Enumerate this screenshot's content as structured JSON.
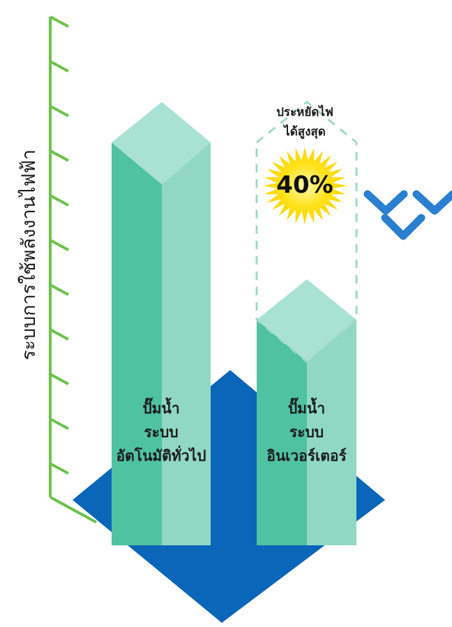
{
  "chart_data": {
    "type": "bar",
    "ylabel": "ระบบการใช้พลังงานไฟฟ้า",
    "categories": [
      [
        "ปั๊มน้ำ",
        "ระบบ",
        "อัตโนมัติทั่วไป"
      ],
      [
        "ปั๊มน้ำ",
        "ระบบ",
        "อินเวอร์เตอร์"
      ]
    ],
    "values": [
      100,
      60
    ],
    "ylim": [
      0,
      100
    ],
    "y_ticks": 11,
    "annotation": {
      "lines": [
        "ประหยัดไฟ",
        "ได้สูงสุด"
      ],
      "value_label": "40%"
    }
  },
  "colors": {
    "axis": "#6cc24a",
    "bar_front": "#4fc2a2",
    "bar_side": "#90d8c3",
    "bar_top": "#a9e2d2",
    "platform": "#0a66b8",
    "arrow": "#2a7fd0",
    "burst": "#ffe21a",
    "dash": "#9fd9c6"
  }
}
